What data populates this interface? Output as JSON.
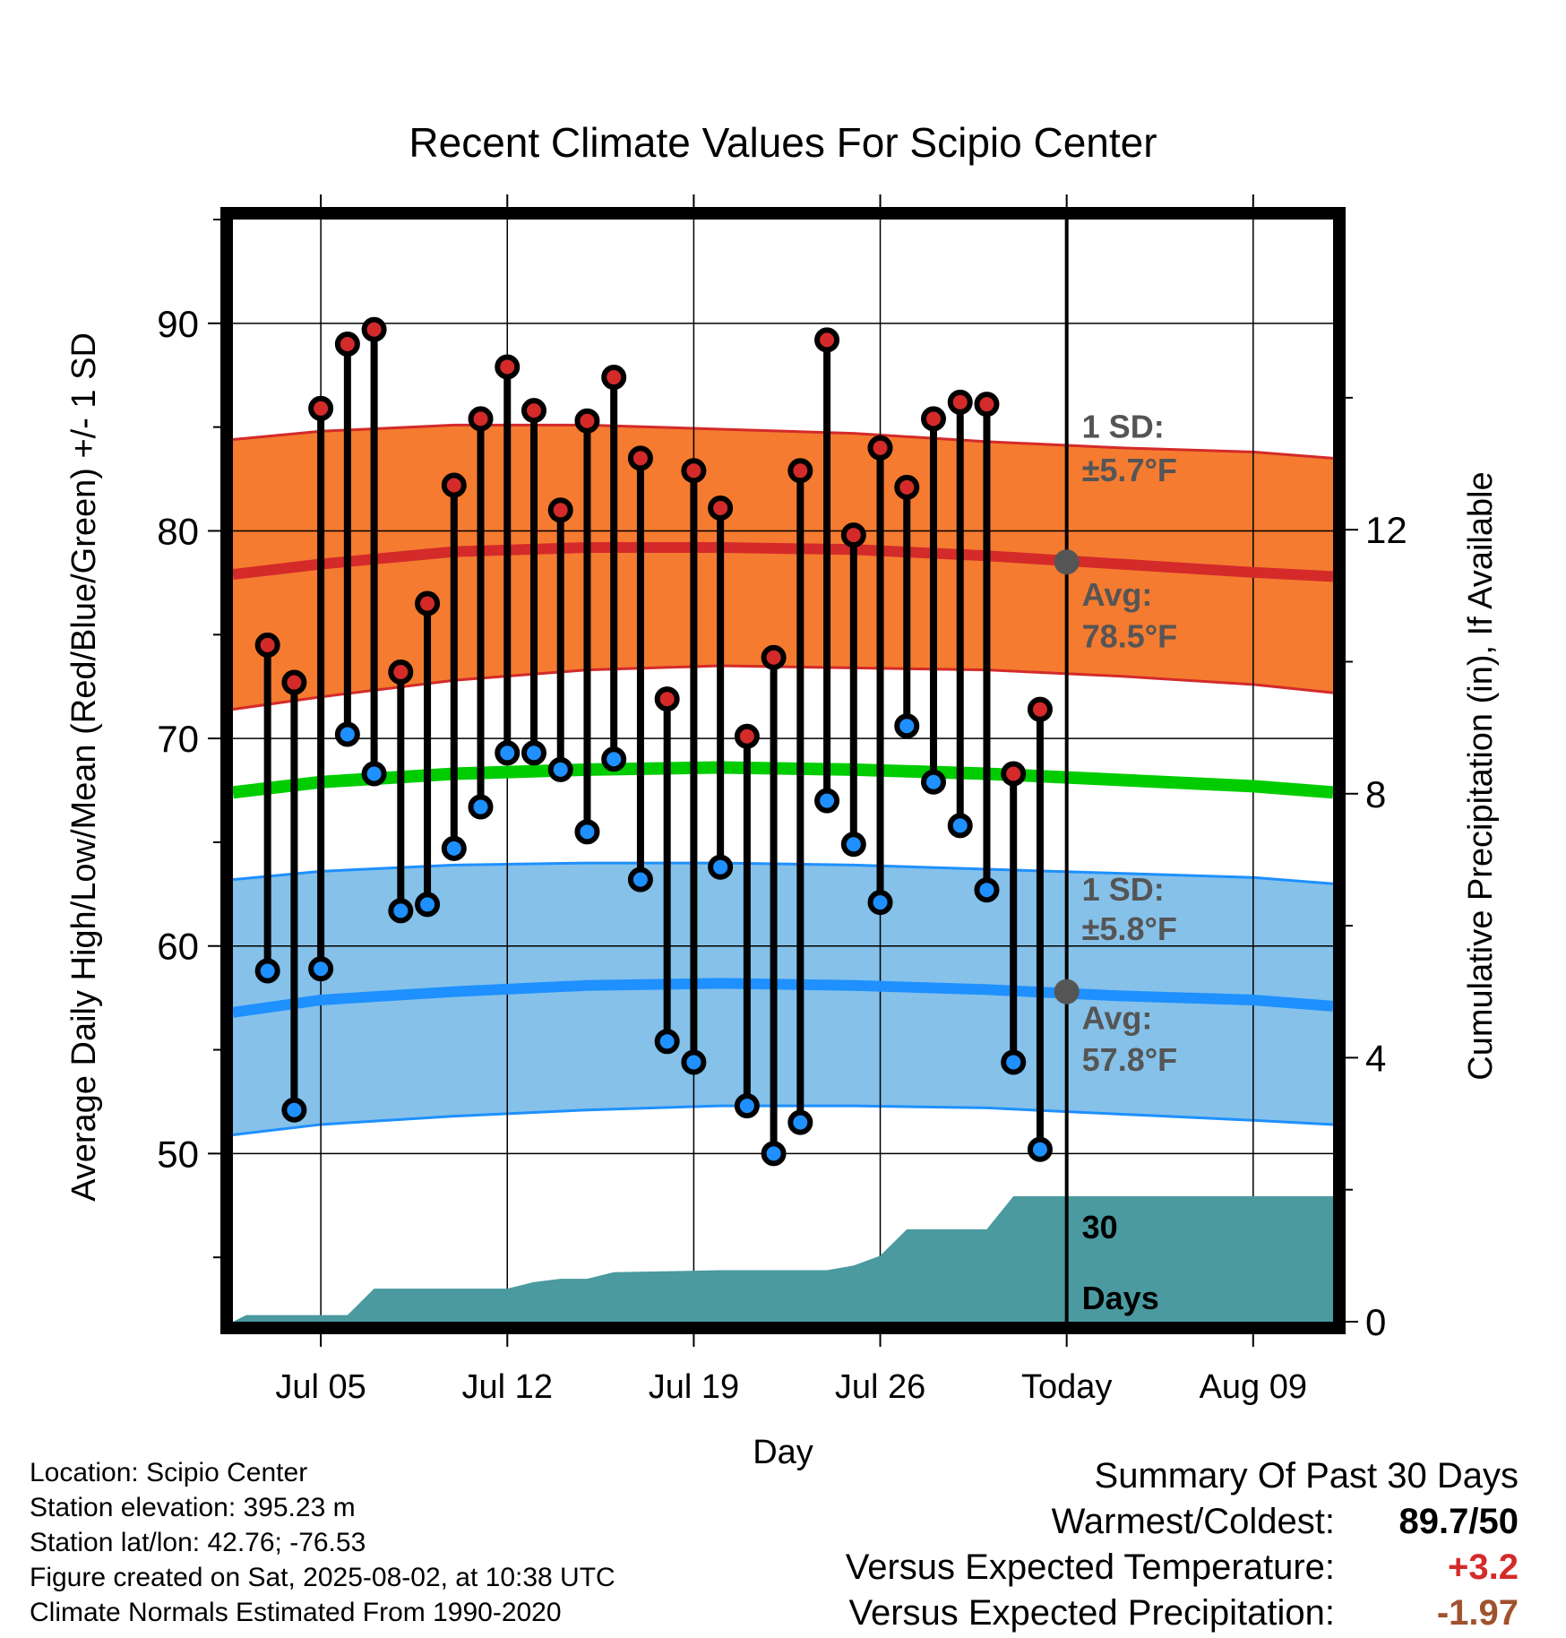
{
  "chart_data": {
    "type": "line",
    "title": "Recent Climate Values For Scipio Center",
    "xlabel": "Day",
    "ylabel": "Average Daily High/Low/Mean (Red/Blue/Green) +/- 1 SD",
    "y2label": "Cumulative Precipitation (in), If Available",
    "ylim": [
      41.9,
      95
    ],
    "y2lim": [
      0,
      16.7
    ],
    "y_ticks": [
      "50",
      "60",
      "70",
      "80",
      "90"
    ],
    "y2_ticks": [
      "0",
      "4",
      "8",
      "12"
    ],
    "x_tick_labels": [
      {
        "day": 5,
        "label": "Jul 05"
      },
      {
        "day": 12,
        "label": "Jul 12"
      },
      {
        "day": 19,
        "label": "Jul 19"
      },
      {
        "day": 26,
        "label": "Jul 26"
      },
      {
        "day": 33,
        "label": "Today"
      },
      {
        "day": 40,
        "label": "Aug 09"
      }
    ],
    "xlim": [
      1.7,
      43.0
    ],
    "today_day": 33,
    "days": [
      3,
      4,
      5,
      6,
      7,
      8,
      9,
      10,
      11,
      12,
      13,
      14,
      15,
      16,
      17,
      18,
      19,
      20,
      21,
      22,
      23,
      24,
      25,
      26,
      27,
      28,
      29,
      30,
      31,
      32
    ],
    "daily_high": [
      74.5,
      72.7,
      85.9,
      89.0,
      89.7,
      73.2,
      76.5,
      82.2,
      85.4,
      87.9,
      85.8,
      81.0,
      85.3,
      87.4,
      83.5,
      71.9,
      82.9,
      81.1,
      70.1,
      73.9,
      82.9,
      89.2,
      79.8,
      84.0,
      82.1,
      85.4,
      86.2,
      86.1,
      68.3,
      71.4
    ],
    "daily_low": [
      58.8,
      52.1,
      58.9,
      70.2,
      68.3,
      61.7,
      62.0,
      64.7,
      66.7,
      69.3,
      69.3,
      68.5,
      65.5,
      69.0,
      63.2,
      55.4,
      54.4,
      63.8,
      52.3,
      50.0,
      51.5,
      67.0,
      64.9,
      62.1,
      70.6,
      67.9,
      65.8,
      62.7,
      54.4,
      50.2
    ],
    "normal_high": {
      "days": [
        1.7,
        5,
        10,
        15,
        20,
        25,
        30,
        35,
        40,
        43.0
      ],
      "mean": [
        77.9,
        78.4,
        79.0,
        79.2,
        79.2,
        79.1,
        78.8,
        78.4,
        78.0,
        77.8
      ],
      "upper": [
        84.4,
        84.8,
        85.1,
        85.1,
        84.9,
        84.7,
        84.3,
        84.0,
        83.8,
        83.5
      ],
      "lower": [
        71.4,
        72.0,
        72.8,
        73.3,
        73.5,
        73.4,
        73.3,
        73.0,
        72.6,
        72.2
      ]
    },
    "normal_low": {
      "days": [
        1.7,
        5,
        10,
        15,
        20,
        25,
        30,
        35,
        40,
        43.0
      ],
      "mean": [
        56.8,
        57.4,
        57.8,
        58.1,
        58.2,
        58.1,
        57.9,
        57.6,
        57.4,
        57.1
      ],
      "upper": [
        63.2,
        63.6,
        63.9,
        64.0,
        64.0,
        63.9,
        63.7,
        63.5,
        63.3,
        63.0
      ],
      "lower": [
        50.9,
        51.4,
        51.8,
        52.1,
        52.3,
        52.3,
        52.2,
        51.9,
        51.6,
        51.4
      ]
    },
    "normal_mean": {
      "days": [
        1.7,
        5,
        10,
        15,
        20,
        25,
        30,
        35,
        40,
        43.0
      ],
      "values": [
        67.4,
        67.9,
        68.3,
        68.5,
        68.6,
        68.5,
        68.3,
        68.0,
        67.7,
        67.4
      ]
    },
    "precip_cumulative": {
      "days": [
        1.7,
        2.2,
        2.7,
        6.0,
        6.5,
        7.0,
        12.0,
        13.0,
        14.0,
        15.0,
        16.0,
        20.0,
        23.0,
        24.0,
        25.0,
        26.0,
        27.0,
        30.0,
        31.0,
        43.0
      ],
      "values": [
        0.0,
        0.1,
        0.1,
        0.1,
        0.3,
        0.5,
        0.5,
        0.6,
        0.65,
        0.65,
        0.75,
        0.78,
        0.78,
        0.78,
        0.85,
        1.0,
        1.4,
        1.4,
        1.9,
        1.9
      ]
    },
    "annotations": {
      "high_sd_label": "1 SD:",
      "high_sd_value": "±5.7°F",
      "high_avg_label": "Avg:",
      "high_avg_value": "78.5°F",
      "high_avg_marker": 78.5,
      "low_sd_label": "1 SD:",
      "low_sd_value": "±5.8°F",
      "low_avg_label": "Avg:",
      "low_avg_value": "57.8°F",
      "low_avg_marker": 57.8,
      "days_label_1": "30",
      "days_label_2": "Days"
    },
    "colors": {
      "high_band": "#f47b30",
      "high_line": "#d42a2a",
      "low_band": "#85c1e9",
      "low_line": "#1e90ff",
      "mean_line": "#00cc00",
      "precip": "#4a9aa0",
      "high_dot": "#d42a2a",
      "low_dot": "#1e90ff",
      "annotation": "#555555"
    }
  },
  "info": {
    "location": "Location: Scipio Center",
    "elevation": "Station elevation: 395.23 m",
    "latlon": "Station lat/lon: 42.76; -76.53",
    "created": "Figure created on Sat, 2025-08-02, at 10:38 UTC",
    "normals": "Climate Normals Estimated From 1990-2020"
  },
  "summary": {
    "title": "Summary Of Past 30 Days",
    "warm_cold_label": "Warmest/Coldest:",
    "warm_cold_value": "89.7/50",
    "temp_label": "Versus Expected Temperature:",
    "temp_value": "+3.2",
    "temp_color": "#d42a2a",
    "precip_label": "Versus Expected Precipitation:",
    "precip_value": "-1.97",
    "precip_color": "#a0522d"
  }
}
